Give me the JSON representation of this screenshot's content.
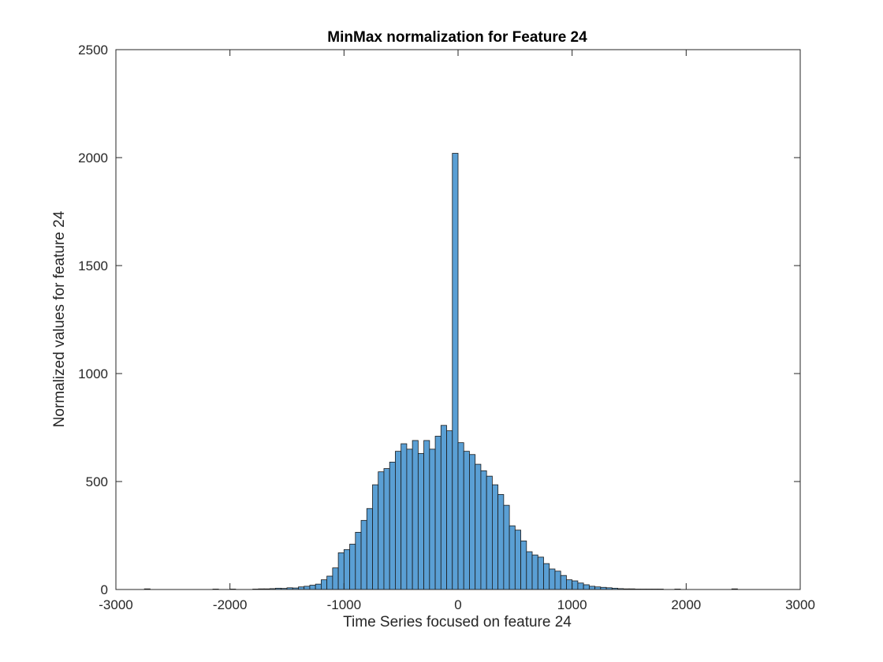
{
  "chart_data": {
    "type": "bar",
    "title": "MinMax normalization for Feature 24",
    "xlabel": "Time Series focused on feature 24",
    "ylabel": "Normalized values for feature 24",
    "xlim": [
      -3000,
      3000
    ],
    "ylim": [
      0,
      2500
    ],
    "xticks": [
      -3000,
      -2000,
      -1000,
      0,
      1000,
      2000,
      3000
    ],
    "yticks": [
      0,
      500,
      1000,
      1500,
      2000,
      2500
    ],
    "grid": false,
    "bar_color": "#5a9fd4",
    "bar_edge_color": "#1a1a1a",
    "bin_width": 50,
    "bins": [
      {
        "x0": -2750,
        "count": 3
      },
      {
        "x0": -2150,
        "count": 2
      },
      {
        "x0": -2000,
        "count": 2
      },
      {
        "x0": -1800,
        "count": 2
      },
      {
        "x0": -1750,
        "count": 3
      },
      {
        "x0": -1700,
        "count": 3
      },
      {
        "x0": -1650,
        "count": 4
      },
      {
        "x0": -1600,
        "count": 6
      },
      {
        "x0": -1550,
        "count": 5
      },
      {
        "x0": -1500,
        "count": 8
      },
      {
        "x0": -1450,
        "count": 7
      },
      {
        "x0": -1400,
        "count": 12
      },
      {
        "x0": -1350,
        "count": 15
      },
      {
        "x0": -1300,
        "count": 20
      },
      {
        "x0": -1250,
        "count": 25
      },
      {
        "x0": -1200,
        "count": 45
      },
      {
        "x0": -1150,
        "count": 62
      },
      {
        "x0": -1100,
        "count": 100
      },
      {
        "x0": -1050,
        "count": 170
      },
      {
        "x0": -1000,
        "count": 185
      },
      {
        "x0": -950,
        "count": 210
      },
      {
        "x0": -900,
        "count": 265
      },
      {
        "x0": -850,
        "count": 320
      },
      {
        "x0": -800,
        "count": 375
      },
      {
        "x0": -750,
        "count": 485
      },
      {
        "x0": -700,
        "count": 545
      },
      {
        "x0": -650,
        "count": 560
      },
      {
        "x0": -600,
        "count": 590
      },
      {
        "x0": -550,
        "count": 640
      },
      {
        "x0": -500,
        "count": 675
      },
      {
        "x0": -450,
        "count": 650
      },
      {
        "x0": -400,
        "count": 690
      },
      {
        "x0": -350,
        "count": 630
      },
      {
        "x0": -300,
        "count": 690
      },
      {
        "x0": -250,
        "count": 650
      },
      {
        "x0": -200,
        "count": 710
      },
      {
        "x0": -150,
        "count": 760
      },
      {
        "x0": -100,
        "count": 735
      },
      {
        "x0": -50,
        "count": 2020
      },
      {
        "x0": 0,
        "count": 680
      },
      {
        "x0": 50,
        "count": 640
      },
      {
        "x0": 100,
        "count": 625
      },
      {
        "x0": 150,
        "count": 580
      },
      {
        "x0": 200,
        "count": 550
      },
      {
        "x0": 250,
        "count": 525
      },
      {
        "x0": 300,
        "count": 485
      },
      {
        "x0": 350,
        "count": 440
      },
      {
        "x0": 400,
        "count": 390
      },
      {
        "x0": 450,
        "count": 295
      },
      {
        "x0": 500,
        "count": 275
      },
      {
        "x0": 550,
        "count": 225
      },
      {
        "x0": 600,
        "count": 175
      },
      {
        "x0": 650,
        "count": 160
      },
      {
        "x0": 700,
        "count": 150
      },
      {
        "x0": 750,
        "count": 120
      },
      {
        "x0": 800,
        "count": 95
      },
      {
        "x0": 850,
        "count": 85
      },
      {
        "x0": 900,
        "count": 65
      },
      {
        "x0": 950,
        "count": 45
      },
      {
        "x0": 1000,
        "count": 40
      },
      {
        "x0": 1050,
        "count": 30
      },
      {
        "x0": 1100,
        "count": 22
      },
      {
        "x0": 1150,
        "count": 15
      },
      {
        "x0": 1200,
        "count": 12
      },
      {
        "x0": 1250,
        "count": 10
      },
      {
        "x0": 1300,
        "count": 8
      },
      {
        "x0": 1350,
        "count": 6
      },
      {
        "x0": 1400,
        "count": 4
      },
      {
        "x0": 1450,
        "count": 3
      },
      {
        "x0": 1500,
        "count": 3
      },
      {
        "x0": 1550,
        "count": 2
      },
      {
        "x0": 1600,
        "count": 2
      },
      {
        "x0": 1650,
        "count": 2
      },
      {
        "x0": 1700,
        "count": 2
      },
      {
        "x0": 1750,
        "count": 2
      },
      {
        "x0": 1900,
        "count": 2
      },
      {
        "x0": 2400,
        "count": 3
      }
    ]
  }
}
